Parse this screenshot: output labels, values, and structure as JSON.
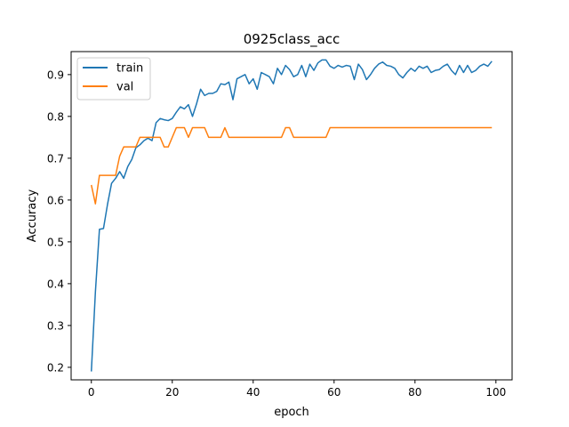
{
  "chart_data": {
    "type": "line",
    "title": "0925class_acc",
    "xlabel": "epoch",
    "ylabel": "Accuracy",
    "xlim": [
      -5,
      104
    ],
    "ylim": [
      0.17,
      0.955
    ],
    "xticks": [
      0,
      20,
      40,
      60,
      80,
      100
    ],
    "yticks": [
      0.2,
      0.3,
      0.4,
      0.5,
      0.6,
      0.7,
      0.8,
      0.9
    ],
    "grid": false,
    "legend": "top-left",
    "series": [
      {
        "name": "train",
        "color": "#1f77b4",
        "x": [
          0,
          1,
          2,
          3,
          4,
          5,
          6,
          7,
          8,
          9,
          10,
          11,
          12,
          13,
          14,
          15,
          16,
          17,
          18,
          19,
          20,
          21,
          22,
          23,
          24,
          25,
          26,
          27,
          28,
          29,
          30,
          31,
          32,
          33,
          34,
          35,
          36,
          37,
          38,
          39,
          40,
          41,
          42,
          43,
          44,
          45,
          46,
          47,
          48,
          49,
          50,
          51,
          52,
          53,
          54,
          55,
          56,
          57,
          58,
          59,
          60,
          61,
          62,
          63,
          64,
          65,
          66,
          67,
          68,
          69,
          70,
          71,
          72,
          73,
          74,
          75,
          76,
          77,
          78,
          79,
          80,
          81,
          82,
          83,
          84,
          85,
          86,
          87,
          88,
          89,
          90,
          91,
          92,
          93,
          94,
          95,
          96,
          97,
          98,
          99
        ],
        "values": [
          0.19,
          0.38,
          0.53,
          0.532,
          0.59,
          0.64,
          0.652,
          0.668,
          0.652,
          0.68,
          0.697,
          0.725,
          0.732,
          0.742,
          0.748,
          0.742,
          0.785,
          0.795,
          0.792,
          0.79,
          0.795,
          0.81,
          0.823,
          0.818,
          0.828,
          0.8,
          0.83,
          0.865,
          0.85,
          0.855,
          0.855,
          0.86,
          0.878,
          0.876,
          0.882,
          0.84,
          0.89,
          0.895,
          0.9,
          0.878,
          0.89,
          0.865,
          0.905,
          0.9,
          0.895,
          0.878,
          0.915,
          0.9,
          0.922,
          0.912,
          0.895,
          0.9,
          0.922,
          0.895,
          0.925,
          0.91,
          0.928,
          0.935,
          0.935,
          0.92,
          0.915,
          0.922,
          0.918,
          0.922,
          0.92,
          0.888,
          0.925,
          0.912,
          0.888,
          0.9,
          0.915,
          0.925,
          0.93,
          0.922,
          0.92,
          0.915,
          0.9,
          0.892,
          0.905,
          0.915,
          0.908,
          0.92,
          0.915,
          0.92,
          0.905,
          0.91,
          0.912,
          0.92,
          0.925,
          0.91,
          0.9,
          0.922,
          0.905,
          0.922,
          0.905,
          0.91,
          0.92,
          0.925,
          0.92,
          0.932
        ]
      },
      {
        "name": "val",
        "color": "#ff7f0e",
        "x": [
          0,
          1,
          2,
          3,
          4,
          5,
          6,
          7,
          8,
          9,
          10,
          11,
          12,
          13,
          14,
          15,
          16,
          17,
          18,
          19,
          20,
          21,
          22,
          23,
          24,
          25,
          26,
          27,
          28,
          29,
          30,
          31,
          32,
          33,
          34,
          35,
          36,
          37,
          38,
          39,
          40,
          41,
          42,
          43,
          44,
          45,
          46,
          47,
          48,
          49,
          50,
          51,
          52,
          53,
          54,
          55,
          56,
          57,
          58,
          59,
          60,
          61,
          62,
          63,
          64,
          65,
          66,
          67,
          68,
          69,
          70,
          71,
          72,
          73,
          74,
          75,
          76,
          77,
          78,
          79,
          80,
          81,
          82,
          83,
          84,
          85,
          86,
          87,
          88,
          89,
          90,
          91,
          92,
          93,
          94,
          95,
          96,
          97,
          98,
          99
        ],
        "values": [
          0.636,
          0.591,
          0.659,
          0.659,
          0.659,
          0.659,
          0.659,
          0.705,
          0.727,
          0.727,
          0.727,
          0.727,
          0.75,
          0.75,
          0.75,
          0.75,
          0.75,
          0.75,
          0.727,
          0.727,
          0.75,
          0.773,
          0.773,
          0.773,
          0.75,
          0.773,
          0.773,
          0.773,
          0.773,
          0.75,
          0.75,
          0.75,
          0.75,
          0.773,
          0.75,
          0.75,
          0.75,
          0.75,
          0.75,
          0.75,
          0.75,
          0.75,
          0.75,
          0.75,
          0.75,
          0.75,
          0.75,
          0.75,
          0.773,
          0.773,
          0.75,
          0.75,
          0.75,
          0.75,
          0.75,
          0.75,
          0.75,
          0.75,
          0.75,
          0.773,
          0.773,
          0.773,
          0.773,
          0.773,
          0.773,
          0.773,
          0.773,
          0.773,
          0.773,
          0.773,
          0.773,
          0.773,
          0.773,
          0.773,
          0.773,
          0.773,
          0.773,
          0.773,
          0.773,
          0.773,
          0.773,
          0.773,
          0.773,
          0.773,
          0.773,
          0.773,
          0.773,
          0.773,
          0.773,
          0.773,
          0.773,
          0.773,
          0.773,
          0.773,
          0.773,
          0.773,
          0.773,
          0.773,
          0.773,
          0.773
        ]
      }
    ]
  }
}
